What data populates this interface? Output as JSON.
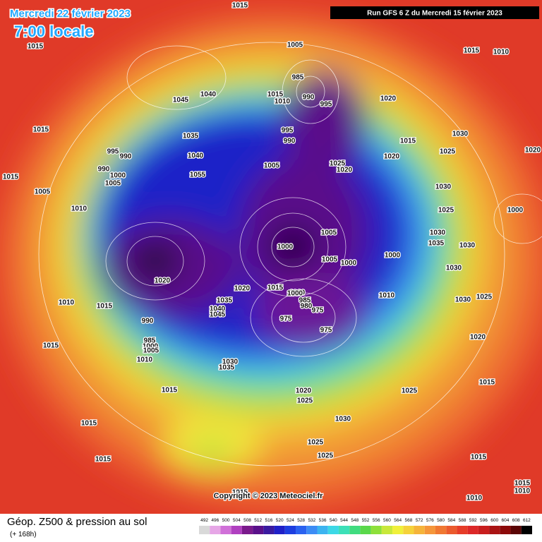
{
  "header": {
    "date": "Mercredi 22 février 2023",
    "time": "7:00 locale",
    "run": "Run GFS 6 Z du Mercredi 15 février 2023"
  },
  "footer": {
    "title": "Géop. Z500 & pression au sol",
    "lead": "(+ 168h)",
    "copyright": "Copyright © 2023 Meteociel.fr"
  },
  "legend": {
    "values": [
      492,
      496,
      500,
      504,
      508,
      512,
      516,
      520,
      524,
      528,
      532,
      536,
      540,
      544,
      548,
      552,
      556,
      560,
      564,
      568,
      572,
      576,
      580,
      584,
      588,
      592,
      596,
      600,
      604,
      608,
      612
    ],
    "colors": [
      "#d9d9d9",
      "#e6a6e6",
      "#d070d8",
      "#b040c0",
      "#7a1a8c",
      "#5a108a",
      "#3a1aa0",
      "#1f20c8",
      "#1d3ee0",
      "#2a62f0",
      "#3c8cf5",
      "#3cb4f0",
      "#3cd8e6",
      "#3ce0b8",
      "#40dc80",
      "#5ad84a",
      "#8ee03a",
      "#c8e83a",
      "#f0f03a",
      "#f5d23a",
      "#f5b43a",
      "#f5963a",
      "#f07832",
      "#eb5a2d",
      "#e63c28",
      "#dc2828",
      "#c81e1e",
      "#aa1414",
      "#8c0a0a",
      "#5a0505",
      "#000000"
    ]
  },
  "pressure_labels": [
    "1015",
    "1015",
    "1005",
    "1015",
    "1010",
    "1040",
    "1045",
    "985",
    "990",
    "1015",
    "1010",
    "995",
    "1020",
    "1015",
    "1035",
    "995",
    "990",
    "1030",
    "1015",
    "1020",
    "1025",
    "1020",
    "995",
    "990",
    "990",
    "1000",
    "1005",
    "1040",
    "1055",
    "1005",
    "1025",
    "1020",
    "1015",
    "1005",
    "1010",
    "1030",
    "1025",
    "1000",
    "1030",
    "1035",
    "1030",
    "1005",
    "1000",
    "1000",
    "1000",
    "1005",
    "1030",
    "1020",
    "1015",
    "1020",
    "1010",
    "1000",
    "985",
    "980",
    "975",
    "1010",
    "1025",
    "1030",
    "1015",
    "1010",
    "1035",
    "1040",
    "1045",
    "975",
    "975",
    "990",
    "1020",
    "985",
    "1000",
    "1005",
    "1015",
    "1010",
    "1035",
    "1030",
    "1015",
    "1020",
    "1025",
    "1025",
    "1015",
    "1030",
    "1015",
    "1025",
    "1025",
    "1015",
    "1015",
    "1015",
    "1015",
    "1010",
    "1010"
  ]
}
